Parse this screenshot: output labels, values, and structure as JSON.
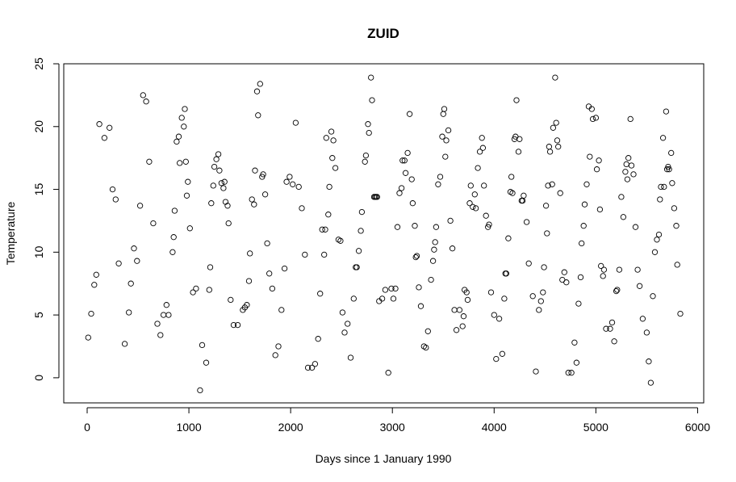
{
  "chart_data": {
    "type": "scatter",
    "title": "ZUID",
    "xlabel": "Days since 1 January 1990",
    "ylabel": "Temperature",
    "xlim": [
      -230,
      6060
    ],
    "ylim": [
      -2,
      25
    ],
    "x_ticks": [
      0,
      1000,
      2000,
      3000,
      4000,
      5000,
      6000
    ],
    "y_ticks": [
      0,
      5,
      10,
      15,
      20,
      25
    ],
    "grid": false,
    "legend": "none",
    "marker": "open-circle",
    "point_color": "#000000",
    "points": [
      [
        10,
        3.2
      ],
      [
        40,
        5.1
      ],
      [
        70,
        7.4
      ],
      [
        90,
        8.2
      ],
      [
        120,
        20.2
      ],
      [
        170,
        19.1
      ],
      [
        220,
        19.9
      ],
      [
        250,
        15.0
      ],
      [
        280,
        14.2
      ],
      [
        310,
        9.1
      ],
      [
        370,
        2.7
      ],
      [
        410,
        5.2
      ],
      [
        430,
        7.5
      ],
      [
        460,
        10.3
      ],
      [
        490,
        9.3
      ],
      [
        520,
        13.7
      ],
      [
        550,
        22.5
      ],
      [
        580,
        22.0
      ],
      [
        610,
        17.2
      ],
      [
        650,
        12.3
      ],
      [
        690,
        4.3
      ],
      [
        720,
        3.4
      ],
      [
        750,
        5.0
      ],
      [
        780,
        5.8
      ],
      [
        800,
        5.0
      ],
      [
        840,
        10.0
      ],
      [
        850,
        11.2
      ],
      [
        860,
        13.3
      ],
      [
        880,
        18.8
      ],
      [
        900,
        19.2
      ],
      [
        910,
        17.1
      ],
      [
        930,
        20.7
      ],
      [
        950,
        20.0
      ],
      [
        960,
        21.4
      ],
      [
        970,
        17.2
      ],
      [
        980,
        14.5
      ],
      [
        990,
        15.6
      ],
      [
        1010,
        11.9
      ],
      [
        1040,
        6.8
      ],
      [
        1070,
        7.1
      ],
      [
        1110,
        -1.0
      ],
      [
        1130,
        2.6
      ],
      [
        1170,
        1.2
      ],
      [
        1200,
        7.0
      ],
      [
        1210,
        8.8
      ],
      [
        1220,
        13.9
      ],
      [
        1240,
        15.3
      ],
      [
        1250,
        16.8
      ],
      [
        1270,
        17.4
      ],
      [
        1290,
        17.8
      ],
      [
        1300,
        16.5
      ],
      [
        1320,
        15.5
      ],
      [
        1340,
        15.1
      ],
      [
        1350,
        15.6
      ],
      [
        1360,
        14.0
      ],
      [
        1380,
        13.7
      ],
      [
        1390,
        12.3
      ],
      [
        1410,
        6.2
      ],
      [
        1440,
        4.2
      ],
      [
        1480,
        4.2
      ],
      [
        1530,
        5.4
      ],
      [
        1550,
        5.6
      ],
      [
        1570,
        5.8
      ],
      [
        1590,
        7.7
      ],
      [
        1600,
        9.9
      ],
      [
        1620,
        14.2
      ],
      [
        1640,
        13.8
      ],
      [
        1650,
        16.5
      ],
      [
        1670,
        22.8
      ],
      [
        1680,
        20.9
      ],
      [
        1700,
        23.4
      ],
      [
        1720,
        16.0
      ],
      [
        1730,
        16.2
      ],
      [
        1750,
        14.6
      ],
      [
        1770,
        10.7
      ],
      [
        1790,
        8.3
      ],
      [
        1820,
        7.1
      ],
      [
        1850,
        1.8
      ],
      [
        1880,
        2.5
      ],
      [
        1910,
        5.4
      ],
      [
        1940,
        8.7
      ],
      [
        1960,
        15.6
      ],
      [
        1990,
        16.0
      ],
      [
        2020,
        15.4
      ],
      [
        2050,
        20.3
      ],
      [
        2080,
        15.2
      ],
      [
        2110,
        13.5
      ],
      [
        2140,
        9.8
      ],
      [
        2170,
        0.8
      ],
      [
        2210,
        0.8
      ],
      [
        2240,
        1.1
      ],
      [
        2270,
        3.1
      ],
      [
        2290,
        6.7
      ],
      [
        2310,
        11.8
      ],
      [
        2330,
        9.8
      ],
      [
        2340,
        11.8
      ],
      [
        2350,
        19.1
      ],
      [
        2370,
        13.0
      ],
      [
        2380,
        15.2
      ],
      [
        2400,
        19.6
      ],
      [
        2410,
        17.5
      ],
      [
        2420,
        18.9
      ],
      [
        2440,
        16.7
      ],
      [
        2470,
        11.0
      ],
      [
        2490,
        10.9
      ],
      [
        2510,
        5.2
      ],
      [
        2530,
        3.6
      ],
      [
        2560,
        4.3
      ],
      [
        2590,
        1.6
      ],
      [
        2620,
        6.3
      ],
      [
        2640,
        8.8
      ],
      [
        2650,
        8.8
      ],
      [
        2670,
        10.1
      ],
      [
        2690,
        11.7
      ],
      [
        2700,
        13.2
      ],
      [
        2730,
        17.2
      ],
      [
        2740,
        17.7
      ],
      [
        2760,
        20.2
      ],
      [
        2770,
        19.5
      ],
      [
        2790,
        23.9
      ],
      [
        2800,
        22.1
      ],
      [
        2820,
        14.4
      ],
      [
        2830,
        14.4
      ],
      [
        2840,
        14.4
      ],
      [
        2850,
        14.4
      ],
      [
        2870,
        6.1
      ],
      [
        2900,
        6.3
      ],
      [
        2930,
        7.0
      ],
      [
        2960,
        0.4
      ],
      [
        2990,
        7.1
      ],
      [
        3010,
        6.3
      ],
      [
        3030,
        7.1
      ],
      [
        3050,
        12.0
      ],
      [
        3070,
        14.7
      ],
      [
        3090,
        15.1
      ],
      [
        3100,
        17.3
      ],
      [
        3120,
        17.3
      ],
      [
        3130,
        16.3
      ],
      [
        3150,
        17.9
      ],
      [
        3170,
        21.0
      ],
      [
        3190,
        15.8
      ],
      [
        3200,
        13.9
      ],
      [
        3220,
        12.1
      ],
      [
        3230,
        9.6
      ],
      [
        3240,
        9.7
      ],
      [
        3260,
        7.2
      ],
      [
        3280,
        5.7
      ],
      [
        3310,
        2.5
      ],
      [
        3330,
        2.4
      ],
      [
        3350,
        3.7
      ],
      [
        3380,
        7.8
      ],
      [
        3400,
        9.3
      ],
      [
        3410,
        10.2
      ],
      [
        3420,
        10.8
      ],
      [
        3430,
        12.0
      ],
      [
        3450,
        15.4
      ],
      [
        3470,
        16.0
      ],
      [
        3490,
        19.2
      ],
      [
        3500,
        21.0
      ],
      [
        3510,
        21.4
      ],
      [
        3520,
        17.6
      ],
      [
        3530,
        18.9
      ],
      [
        3550,
        19.7
      ],
      [
        3570,
        12.5
      ],
      [
        3590,
        10.3
      ],
      [
        3610,
        5.4
      ],
      [
        3630,
        3.8
      ],
      [
        3660,
        5.4
      ],
      [
        3690,
        4.1
      ],
      [
        3700,
        4.9
      ],
      [
        3710,
        7.0
      ],
      [
        3730,
        6.8
      ],
      [
        3740,
        6.2
      ],
      [
        3760,
        13.9
      ],
      [
        3770,
        15.3
      ],
      [
        3790,
        13.6
      ],
      [
        3810,
        14.6
      ],
      [
        3820,
        13.5
      ],
      [
        3840,
        16.7
      ],
      [
        3860,
        18.0
      ],
      [
        3880,
        19.1
      ],
      [
        3890,
        18.3
      ],
      [
        3900,
        15.3
      ],
      [
        3920,
        12.9
      ],
      [
        3940,
        12.0
      ],
      [
        3950,
        12.2
      ],
      [
        3970,
        6.8
      ],
      [
        4000,
        5.0
      ],
      [
        4020,
        1.5
      ],
      [
        4050,
        4.7
      ],
      [
        4080,
        1.9
      ],
      [
        4100,
        6.3
      ],
      [
        4110,
        8.3
      ],
      [
        4120,
        8.3
      ],
      [
        4140,
        11.1
      ],
      [
        4160,
        14.8
      ],
      [
        4170,
        16.0
      ],
      [
        4180,
        14.7
      ],
      [
        4200,
        19.0
      ],
      [
        4210,
        19.2
      ],
      [
        4220,
        22.1
      ],
      [
        4240,
        18.0
      ],
      [
        4250,
        19.0
      ],
      [
        4270,
        14.1
      ],
      [
        4280,
        14.1
      ],
      [
        4290,
        14.5
      ],
      [
        4320,
        12.4
      ],
      [
        4340,
        9.1
      ],
      [
        4380,
        6.5
      ],
      [
        4410,
        0.5
      ],
      [
        4440,
        5.4
      ],
      [
        4460,
        6.1
      ],
      [
        4480,
        6.8
      ],
      [
        4490,
        8.8
      ],
      [
        4510,
        13.7
      ],
      [
        4520,
        11.5
      ],
      [
        4530,
        15.3
      ],
      [
        4540,
        18.4
      ],
      [
        4550,
        18.0
      ],
      [
        4570,
        15.4
      ],
      [
        4580,
        19.9
      ],
      [
        4600,
        23.9
      ],
      [
        4610,
        20.3
      ],
      [
        4620,
        18.9
      ],
      [
        4630,
        18.4
      ],
      [
        4650,
        14.7
      ],
      [
        4670,
        7.8
      ],
      [
        4690,
        8.4
      ],
      [
        4710,
        7.6
      ],
      [
        4730,
        0.4
      ],
      [
        4760,
        0.4
      ],
      [
        4790,
        2.8
      ],
      [
        4810,
        1.2
      ],
      [
        4830,
        5.9
      ],
      [
        4850,
        8.0
      ],
      [
        4860,
        10.7
      ],
      [
        4880,
        12.1
      ],
      [
        4890,
        13.8
      ],
      [
        4910,
        15.4
      ],
      [
        4930,
        21.6
      ],
      [
        4940,
        17.6
      ],
      [
        4960,
        21.4
      ],
      [
        4970,
        20.6
      ],
      [
        5000,
        20.7
      ],
      [
        5010,
        16.6
      ],
      [
        5030,
        17.3
      ],
      [
        5040,
        13.4
      ],
      [
        5050,
        8.9
      ],
      [
        5070,
        8.1
      ],
      [
        5080,
        8.6
      ],
      [
        5100,
        3.9
      ],
      [
        5140,
        3.9
      ],
      [
        5160,
        4.4
      ],
      [
        5180,
        2.9
      ],
      [
        5200,
        6.9
      ],
      [
        5210,
        7.0
      ],
      [
        5230,
        8.6
      ],
      [
        5250,
        14.4
      ],
      [
        5270,
        12.8
      ],
      [
        5290,
        16.4
      ],
      [
        5300,
        17.0
      ],
      [
        5310,
        15.8
      ],
      [
        5320,
        17.5
      ],
      [
        5340,
        20.6
      ],
      [
        5350,
        16.9
      ],
      [
        5370,
        16.2
      ],
      [
        5390,
        12.0
      ],
      [
        5410,
        8.6
      ],
      [
        5430,
        7.3
      ],
      [
        5460,
        4.7
      ],
      [
        5500,
        3.6
      ],
      [
        5520,
        1.3
      ],
      [
        5540,
        -0.4
      ],
      [
        5560,
        6.5
      ],
      [
        5580,
        10.0
      ],
      [
        5600,
        11.0
      ],
      [
        5620,
        11.4
      ],
      [
        5630,
        14.2
      ],
      [
        5640,
        15.2
      ],
      [
        5660,
        19.1
      ],
      [
        5670,
        15.2
      ],
      [
        5690,
        21.2
      ],
      [
        5700,
        16.6
      ],
      [
        5710,
        16.8
      ],
      [
        5720,
        16.6
      ],
      [
        5740,
        17.9
      ],
      [
        5750,
        15.5
      ],
      [
        5770,
        13.5
      ],
      [
        5790,
        12.1
      ],
      [
        5800,
        9.0
      ],
      [
        5830,
        5.1
      ]
    ]
  }
}
